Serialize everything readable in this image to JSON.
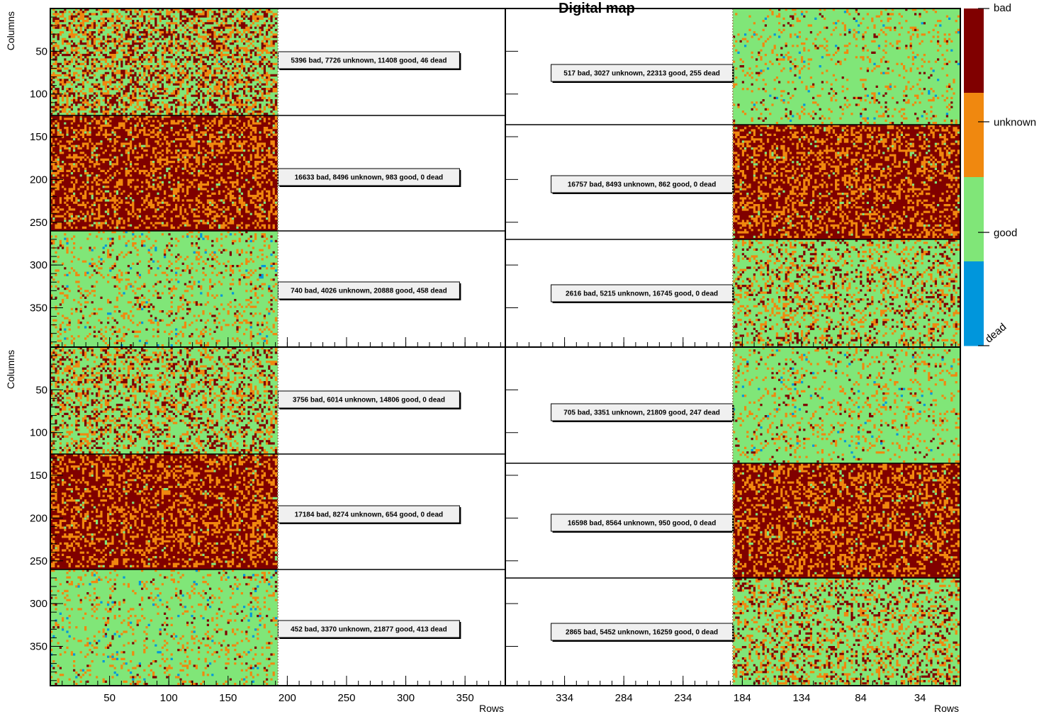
{
  "chart_data": {
    "type": "heatmap",
    "title": "Digital map",
    "status_colors": {
      "bad": "#800000",
      "unknown": "#f0880f",
      "good": "#80e678",
      "dead": "#0096dc"
    },
    "palette": {
      "labels": [
        "bad",
        "unknown",
        "good",
        "dead"
      ]
    },
    "axes": {
      "ylabel": "Columns",
      "xlabel": "Rows",
      "y_ticks": [
        50,
        100,
        150,
        200,
        250,
        300,
        350
      ],
      "y_range": [
        0,
        396
      ],
      "left_x_ticks": [
        50,
        100,
        150,
        200,
        250,
        300,
        350
      ],
      "left_x_range": [
        0,
        384
      ],
      "right_x_ticks": [
        334,
        284,
        234,
        184,
        134,
        84,
        34
      ],
      "right_x_range": [
        384,
        0
      ],
      "map_rows": 192
    },
    "panels": [
      {
        "name": "top-left",
        "bands": [
          {
            "stats": "5396 bad, 7726 unknown, 11408 good, 46 dead",
            "bad": 5396,
            "unknown": 7726,
            "good": 11408,
            "dead": 46
          },
          {
            "stats": "16633 bad, 8496 unknown, 983 good, 0 dead",
            "bad": 16633,
            "unknown": 8496,
            "good": 983,
            "dead": 0
          },
          {
            "stats": "740 bad, 4026 unknown, 20888 good, 458 dead",
            "bad": 740,
            "unknown": 4026,
            "good": 20888,
            "dead": 458
          }
        ]
      },
      {
        "name": "top-right",
        "bands": [
          {
            "stats": "517 bad, 3027 unknown, 22313 good, 255 dead",
            "bad": 517,
            "unknown": 3027,
            "good": 22313,
            "dead": 255
          },
          {
            "stats": "16757 bad, 8493 unknown, 862 good, 0 dead",
            "bad": 16757,
            "unknown": 8493,
            "good": 862,
            "dead": 0
          },
          {
            "stats": "2616 bad, 5215 unknown, 16745 good, 0 dead",
            "bad": 2616,
            "unknown": 5215,
            "good": 16745,
            "dead": 0
          }
        ]
      },
      {
        "name": "bottom-left",
        "bands": [
          {
            "stats": "3756 bad, 6014 unknown, 14806 good, 0 dead",
            "bad": 3756,
            "unknown": 6014,
            "good": 14806,
            "dead": 0
          },
          {
            "stats": "17184 bad, 8274 unknown, 654 good, 0 dead",
            "bad": 17184,
            "unknown": 8274,
            "good": 654,
            "dead": 0
          },
          {
            "stats": "452 bad, 3370 unknown, 21877 good, 413 dead",
            "bad": 452,
            "unknown": 3370,
            "good": 21877,
            "dead": 413
          }
        ]
      },
      {
        "name": "bottom-right",
        "bands": [
          {
            "stats": "705 bad, 3351 unknown, 21809 good, 247 dead",
            "bad": 705,
            "unknown": 3351,
            "good": 21809,
            "dead": 247
          },
          {
            "stats": "16598 bad, 8564 unknown, 950 good, 0 dead",
            "bad": 16598,
            "unknown": 8564,
            "good": 950,
            "dead": 0
          },
          {
            "stats": "2865 bad, 5452 unknown, 16259 good, 0 dead",
            "bad": 2865,
            "unknown": 5452,
            "good": 16259,
            "dead": 0
          }
        ]
      }
    ]
  }
}
